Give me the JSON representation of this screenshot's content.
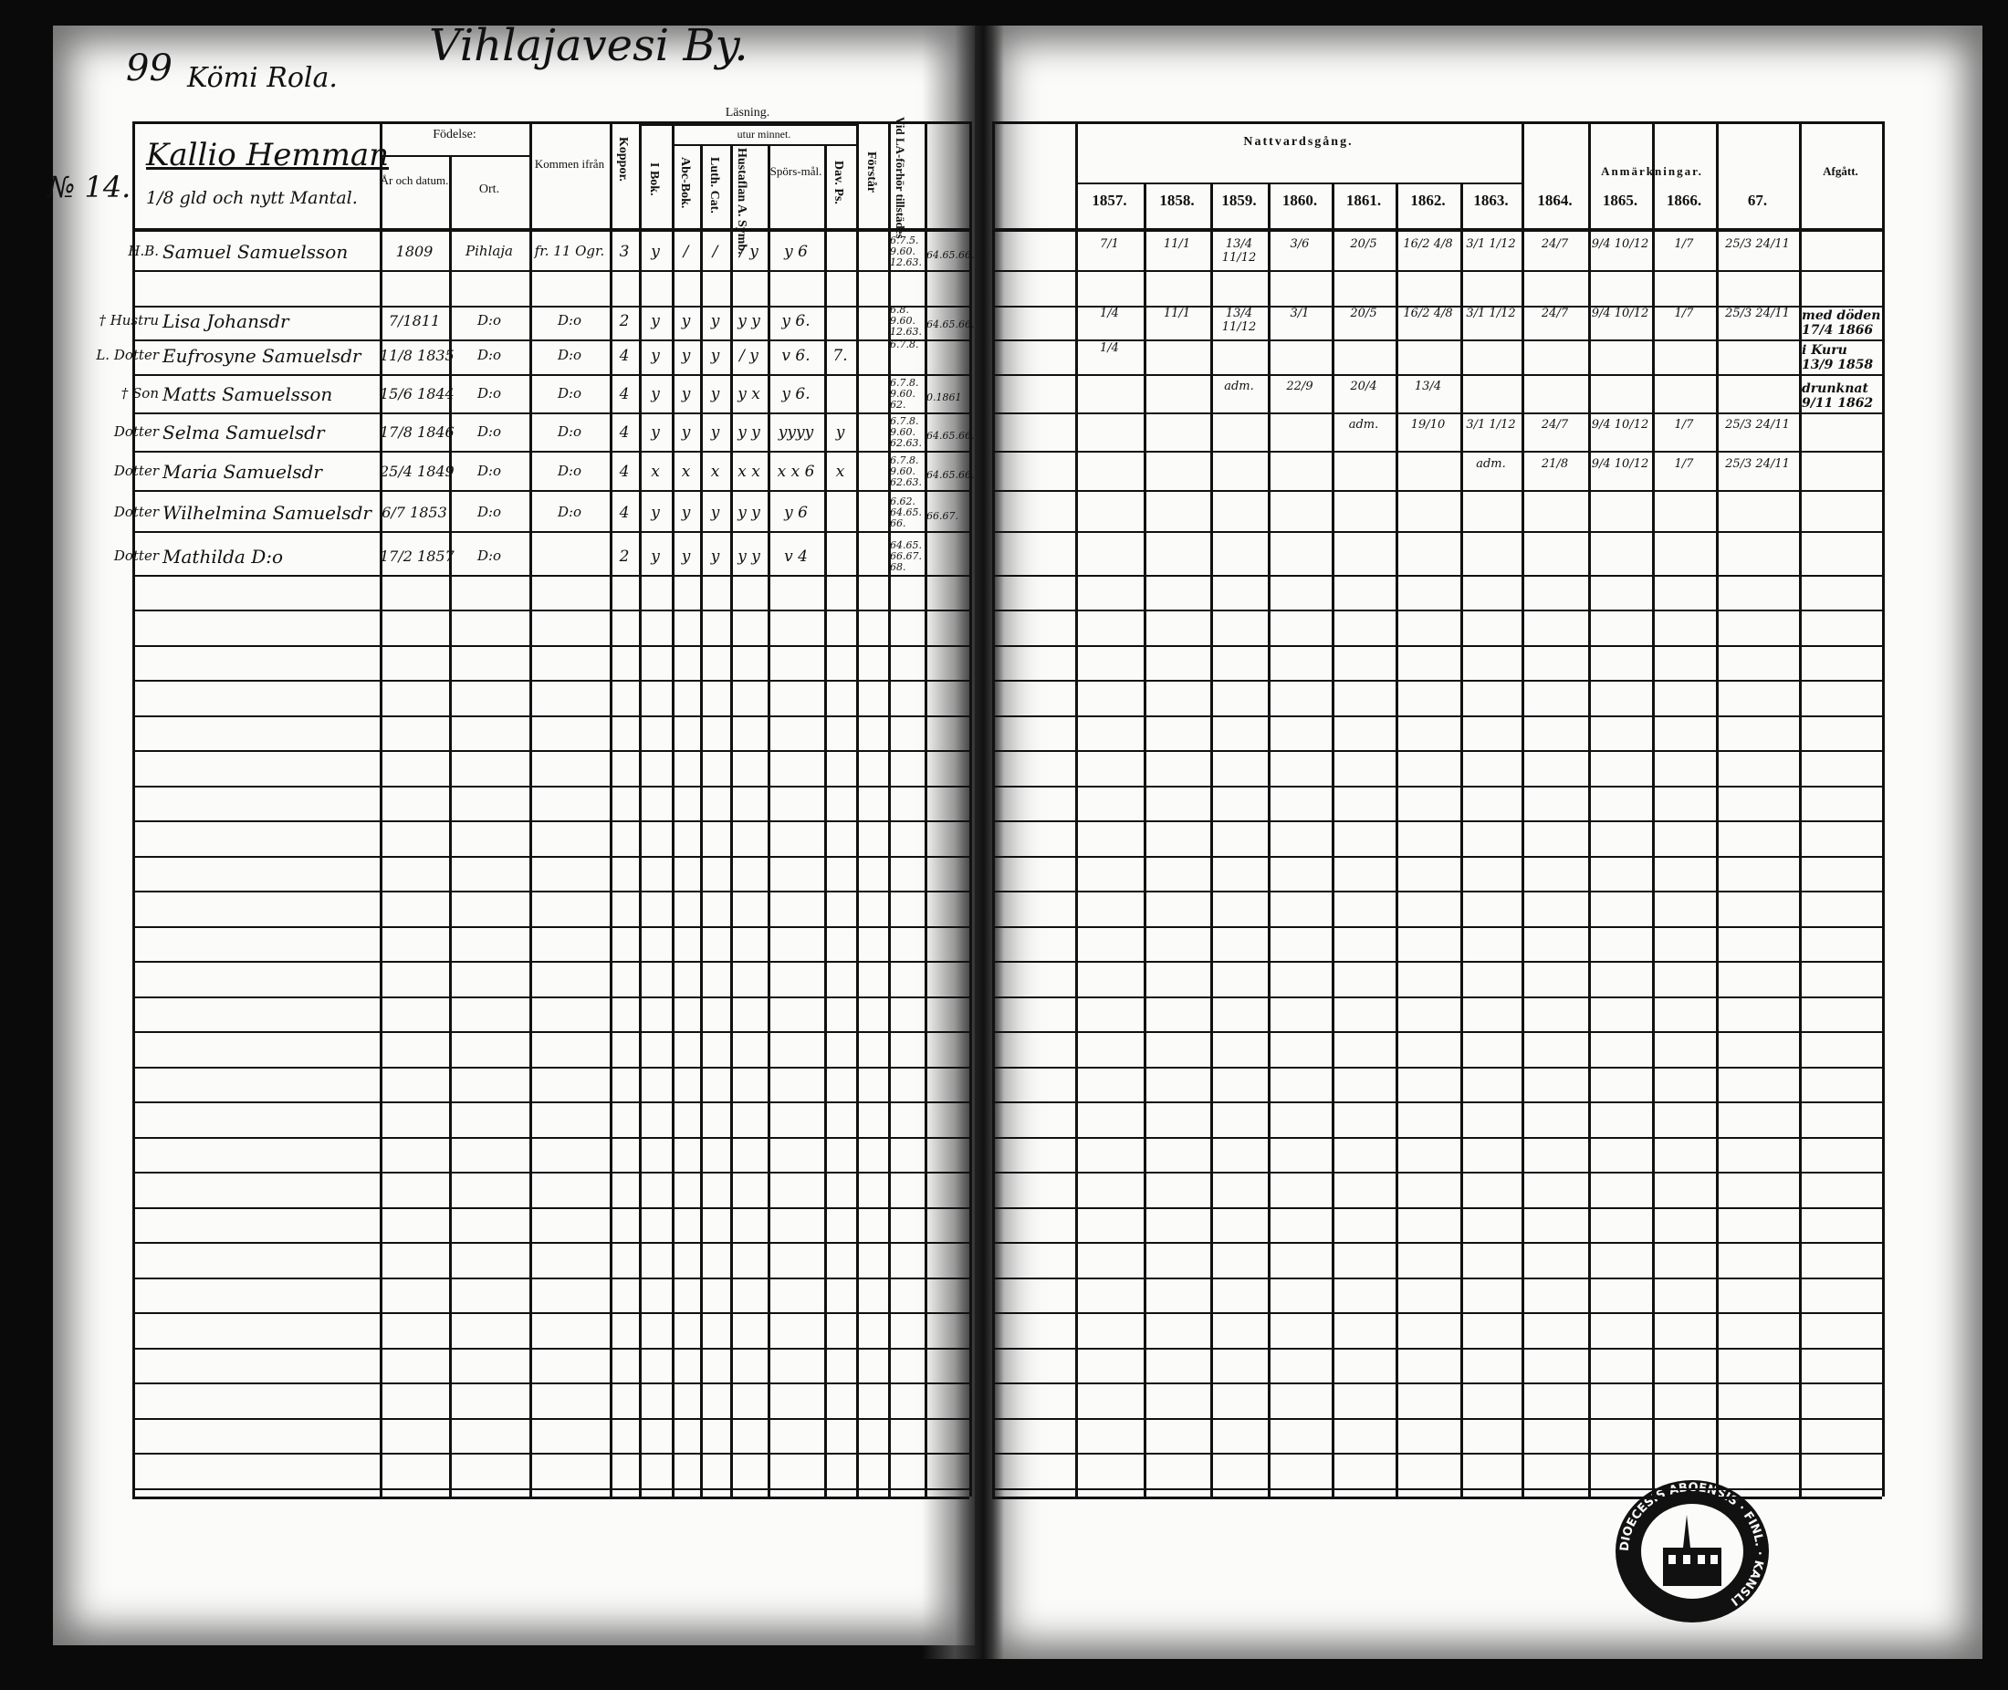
{
  "left_page": {
    "page_number": "99",
    "village": "Vihlajavesi By.",
    "farm": "Kömi Rola.",
    "household_no": "№ 14.",
    "homestead": "Kallio Hemman",
    "mantal": "1/8 gld och nytt Mantal.",
    "headers": {
      "fodelse": "Födelse:",
      "ar": "År och datum.",
      "ort": "Ort.",
      "kommen": "Kommen ifrån",
      "koppor": "Koppor.",
      "lasning": "Läsning.",
      "utur_minnet": "utur minnet.",
      "i_bok": "I Bok.",
      "abc": "Abc-Bok.",
      "luth": "Luth. Cat.",
      "hustaflan": "Hustaflan A. Symb.",
      "sporsmal": "Spörs-mål.",
      "dav": "Dav. Ps.",
      "forstar": "Förstår",
      "forhor": "Vid LA-förhör tillstädes"
    },
    "persons": [
      {
        "role": "H.B.",
        "name": "Samuel Samuelsson",
        "born": "1809",
        "place": "Pihlaja",
        "from": "fr. 11 Ogr.",
        "koppor": "3",
        "ibok": "y",
        "abc": "/",
        "luth": "/",
        "hust": "/ y",
        "spors": "y  6",
        "dav": "",
        "forstar": "",
        "forhor": "6.7.5. 9.60. 12.63.",
        "extra": "64.65.66."
      },
      {
        "role": "† Hustru",
        "name": "Lisa Johansdr",
        "born": "7/1811",
        "place": "D:o",
        "from": "D:o",
        "koppor": "2",
        "ibok": "y",
        "abc": "y",
        "luth": "y",
        "hust": "y y",
        "spors": "y  6.",
        "dav": "",
        "forstar": "",
        "forhor": "6.8. 9.60. 12.63.",
        "extra": "64.65.66."
      },
      {
        "role": "L. Dotter",
        "name": "Eufrosyne Samuelsdr",
        "born": "11/8 1835",
        "place": "D:o",
        "from": "D:o",
        "koppor": "4",
        "ibok": "y",
        "abc": "y",
        "luth": "y",
        "hust": "/ y",
        "spors": "v  6.",
        "dav": "7.",
        "forstar": "",
        "forhor": "6.7.8.",
        "extra": ""
      },
      {
        "role": "† Son",
        "name": "Matts Samuelsson",
        "born": "15/6 1844",
        "place": "D:o",
        "from": "D:o",
        "koppor": "4",
        "ibok": "y",
        "abc": "y",
        "luth": "y",
        "hust": "y x",
        "spors": "y  6.",
        "dav": "",
        "forstar": "",
        "forhor": "6.7.8. 9.60. 62.",
        "extra": "0.1861"
      },
      {
        "role": "Dotter",
        "name": "Selma Samuelsdr",
        "born": "17/8 1846",
        "place": "D:o",
        "from": "D:o",
        "koppor": "4",
        "ibok": "y",
        "abc": "y",
        "luth": "y",
        "hust": "y y",
        "spors": "yyyy",
        "dav": "y",
        "forstar": "",
        "forhor": "6.7.8. 9.60. 62.63.",
        "extra": "64.65.66."
      },
      {
        "role": "Dotter",
        "name": "Maria Samuelsdr",
        "born": "25/4 1849",
        "place": "D:o",
        "from": "D:o",
        "koppor": "4",
        "ibok": "x",
        "abc": "x",
        "luth": "x",
        "hust": "x x",
        "spors": "x x  6",
        "dav": "x",
        "forstar": "",
        "forhor": "6.7.8. 9.60. 62.63.",
        "extra": "64.65.66."
      },
      {
        "role": "Dotter",
        "name": "Wilhelmina Samuelsdr",
        "born": "6/7 1853",
        "place": "D:o",
        "from": "D:o",
        "koppor": "4",
        "ibok": "y",
        "abc": "y",
        "luth": "y",
        "hust": "y y",
        "spors": "y  6",
        "dav": "",
        "forstar": "",
        "forhor": "6.62. 64.65. 66.",
        "extra": "66.67."
      },
      {
        "role": "Dotter",
        "name": "Mathilda D:o",
        "born": "17/2 1857",
        "place": "D:o",
        "from": "",
        "koppor": "2",
        "ibok": "y",
        "abc": "y",
        "luth": "y",
        "hust": "y y",
        "spors": "v  4",
        "dav": "",
        "forstar": "",
        "forhor": "64.65. 66.67. 68.",
        "extra": ""
      }
    ]
  },
  "right_page": {
    "headers": {
      "nattvard": "Nattvardsgång.",
      "years": [
        "1857.",
        "1858.",
        "1859.",
        "1860.",
        "1861.",
        "1862.",
        "1863.",
        "1864.",
        "1865.",
        "1866.",
        "67."
      ],
      "anmarkningar": "Anmärkningar.",
      "afgatt": "Afgått."
    },
    "communion": [
      [
        "7/1",
        "11/1",
        "13/4 11/12",
        "3/6",
        "20/5",
        "16/2 4/8",
        "3/1 1/12",
        "24/7",
        "9/4 10/12",
        "1/7",
        "25/3 24/11"
      ],
      [
        "1/4",
        "11/1",
        "13/4 11/12",
        "3/1",
        "20/5",
        "16/2 4/8",
        "3/1 1/12",
        "24/7",
        "9/4 10/12",
        "1/7",
        "25/3 24/11"
      ],
      [
        "1/4",
        "",
        "",
        "",
        "",
        "",
        "",
        "",
        "",
        "",
        ""
      ],
      [
        "",
        "",
        "adm.",
        "22/9",
        "20/4",
        "13/4",
        "",
        "",
        "",
        "",
        ""
      ],
      [
        "",
        "",
        "",
        "",
        "adm.",
        "19/10",
        "3/1 1/12",
        "24/7",
        "9/4 10/12",
        "1/7",
        "25/3 24/11"
      ],
      [
        "",
        "",
        "",
        "",
        "",
        "",
        "adm.",
        "21/8",
        "9/4 10/12",
        "1/7",
        "25/3 24/11"
      ],
      [
        "",
        "",
        "",
        "",
        "",
        "",
        "",
        "",
        "",
        "",
        ""
      ],
      [
        "",
        "",
        "",
        "",
        "",
        "",
        "",
        "",
        "",
        "",
        ""
      ]
    ],
    "remarks": [
      "",
      "med döden 17/4 1866",
      "i Kuru 13/9 1858",
      "drunknat 9/11 1862",
      "",
      "",
      "",
      ""
    ],
    "stamp_text": "DIOECESIS ABOENSIS · FINL. · KANSLI"
  }
}
